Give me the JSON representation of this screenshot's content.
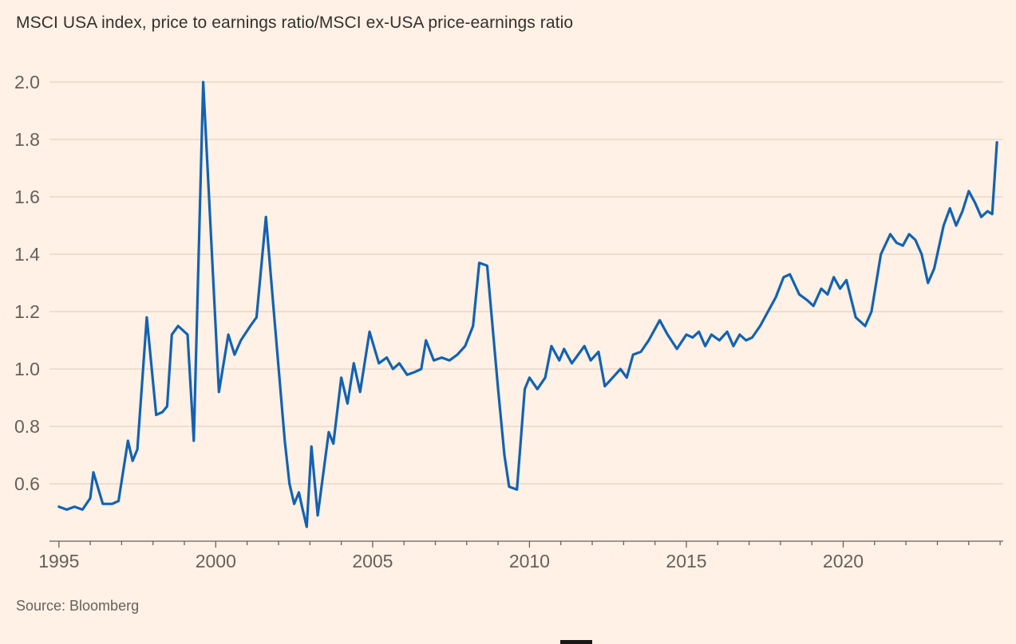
{
  "page": {
    "title": "MSCI USA index, price to earnings ratio/MSCI ex-USA price-earnings ratio",
    "source": "Source: Bloomberg"
  },
  "colors": {
    "background": "#FFF1E5",
    "line": "#1262B3",
    "grid": "#E7D8C9",
    "axis": "#66605C",
    "title_text": "#33302E",
    "tick_text": "#66605C"
  },
  "chart_data": {
    "type": "line",
    "title": "MSCI USA index, price to earnings ratio/MSCI ex-USA price-earnings ratio",
    "source": "Source: Bloomberg",
    "xlabel": "",
    "ylabel": "",
    "xlim": [
      1994.7,
      2025.1
    ],
    "ylim": [
      0.4,
      2.05
    ],
    "grid": "horizontal",
    "legend": "none",
    "yticks": [
      0.6,
      0.8,
      1.0,
      1.2,
      1.4,
      1.6,
      1.8,
      2.0
    ],
    "ytick_labels": [
      "0.6",
      "0.8",
      "1.0",
      "1.2",
      "1.4",
      "1.6",
      "1.8",
      "2.0"
    ],
    "xticks": [
      1995,
      2000,
      2005,
      2010,
      2015,
      2020
    ],
    "xtick_labels": [
      "1995",
      "2000",
      "2005",
      "2010",
      "2015",
      "2020"
    ],
    "minor_xtick_step_years": 1,
    "minor_xtick_range": [
      1995,
      2025
    ],
    "series": [
      {
        "name": "MSCI USA PE / MSCI ex-USA PE",
        "points": [
          [
            1995.0,
            0.52
          ],
          [
            1995.25,
            0.51
          ],
          [
            1995.5,
            0.52
          ],
          [
            1995.75,
            0.51
          ],
          [
            1996.0,
            0.55
          ],
          [
            1996.1,
            0.64
          ],
          [
            1996.4,
            0.53
          ],
          [
            1996.7,
            0.53
          ],
          [
            1996.9,
            0.54
          ],
          [
            1997.2,
            0.75
          ],
          [
            1997.35,
            0.68
          ],
          [
            1997.5,
            0.72
          ],
          [
            1997.8,
            1.18
          ],
          [
            1998.1,
            0.84
          ],
          [
            1998.3,
            0.85
          ],
          [
            1998.45,
            0.87
          ],
          [
            1998.6,
            1.12
          ],
          [
            1998.8,
            1.15
          ],
          [
            1999.1,
            1.12
          ],
          [
            1999.3,
            0.75
          ],
          [
            1999.6,
            2.0
          ],
          [
            2000.1,
            0.92
          ],
          [
            2000.4,
            1.12
          ],
          [
            2000.6,
            1.05
          ],
          [
            2000.8,
            1.1
          ],
          [
            2001.1,
            1.15
          ],
          [
            2001.3,
            1.18
          ],
          [
            2001.6,
            1.53
          ],
          [
            2001.85,
            1.2
          ],
          [
            2002.2,
            0.75
          ],
          [
            2002.35,
            0.6
          ],
          [
            2002.5,
            0.53
          ],
          [
            2002.65,
            0.57
          ],
          [
            2002.75,
            0.52
          ],
          [
            2002.9,
            0.45
          ],
          [
            2003.05,
            0.73
          ],
          [
            2003.25,
            0.49
          ],
          [
            2003.6,
            0.78
          ],
          [
            2003.75,
            0.74
          ],
          [
            2004.0,
            0.97
          ],
          [
            2004.2,
            0.88
          ],
          [
            2004.4,
            1.02
          ],
          [
            2004.6,
            0.92
          ],
          [
            2004.9,
            1.13
          ],
          [
            2005.2,
            1.02
          ],
          [
            2005.45,
            1.04
          ],
          [
            2005.65,
            1.0
          ],
          [
            2005.85,
            1.02
          ],
          [
            2006.1,
            0.98
          ],
          [
            2006.35,
            0.99
          ],
          [
            2006.55,
            1.0
          ],
          [
            2006.7,
            1.1
          ],
          [
            2006.95,
            1.03
          ],
          [
            2007.2,
            1.04
          ],
          [
            2007.45,
            1.03
          ],
          [
            2007.7,
            1.05
          ],
          [
            2007.95,
            1.08
          ],
          [
            2008.2,
            1.15
          ],
          [
            2008.4,
            1.37
          ],
          [
            2008.65,
            1.36
          ],
          [
            2009.0,
            0.93
          ],
          [
            2009.2,
            0.7
          ],
          [
            2009.35,
            0.59
          ],
          [
            2009.6,
            0.58
          ],
          [
            2009.85,
            0.93
          ],
          [
            2010.0,
            0.97
          ],
          [
            2010.25,
            0.93
          ],
          [
            2010.5,
            0.97
          ],
          [
            2010.7,
            1.08
          ],
          [
            2010.95,
            1.03
          ],
          [
            2011.1,
            1.07
          ],
          [
            2011.35,
            1.02
          ],
          [
            2011.55,
            1.05
          ],
          [
            2011.75,
            1.08
          ],
          [
            2011.95,
            1.03
          ],
          [
            2012.2,
            1.06
          ],
          [
            2012.4,
            0.94
          ],
          [
            2012.65,
            0.97
          ],
          [
            2012.9,
            1.0
          ],
          [
            2013.1,
            0.97
          ],
          [
            2013.3,
            1.05
          ],
          [
            2013.55,
            1.06
          ],
          [
            2013.8,
            1.1
          ],
          [
            2014.15,
            1.17
          ],
          [
            2014.4,
            1.12
          ],
          [
            2014.7,
            1.07
          ],
          [
            2015.0,
            1.12
          ],
          [
            2015.2,
            1.11
          ],
          [
            2015.4,
            1.13
          ],
          [
            2015.6,
            1.08
          ],
          [
            2015.8,
            1.12
          ],
          [
            2016.05,
            1.1
          ],
          [
            2016.3,
            1.13
          ],
          [
            2016.5,
            1.08
          ],
          [
            2016.7,
            1.12
          ],
          [
            2016.9,
            1.1
          ],
          [
            2017.1,
            1.11
          ],
          [
            2017.35,
            1.15
          ],
          [
            2017.6,
            1.2
          ],
          [
            2017.85,
            1.25
          ],
          [
            2018.1,
            1.32
          ],
          [
            2018.3,
            1.33
          ],
          [
            2018.6,
            1.26
          ],
          [
            2018.85,
            1.24
          ],
          [
            2019.05,
            1.22
          ],
          [
            2019.3,
            1.28
          ],
          [
            2019.5,
            1.26
          ],
          [
            2019.7,
            1.32
          ],
          [
            2019.9,
            1.28
          ],
          [
            2020.1,
            1.31
          ],
          [
            2020.4,
            1.18
          ],
          [
            2020.7,
            1.15
          ],
          [
            2020.9,
            1.2
          ],
          [
            2021.2,
            1.4
          ],
          [
            2021.5,
            1.47
          ],
          [
            2021.7,
            1.44
          ],
          [
            2021.9,
            1.43
          ],
          [
            2022.1,
            1.47
          ],
          [
            2022.3,
            1.45
          ],
          [
            2022.5,
            1.4
          ],
          [
            2022.7,
            1.3
          ],
          [
            2022.9,
            1.35
          ],
          [
            2023.2,
            1.5
          ],
          [
            2023.4,
            1.56
          ],
          [
            2023.6,
            1.5
          ],
          [
            2023.8,
            1.55
          ],
          [
            2024.0,
            1.62
          ],
          [
            2024.2,
            1.58
          ],
          [
            2024.4,
            1.53
          ],
          [
            2024.6,
            1.55
          ],
          [
            2024.75,
            1.54
          ],
          [
            2024.9,
            1.79
          ]
        ]
      }
    ]
  }
}
